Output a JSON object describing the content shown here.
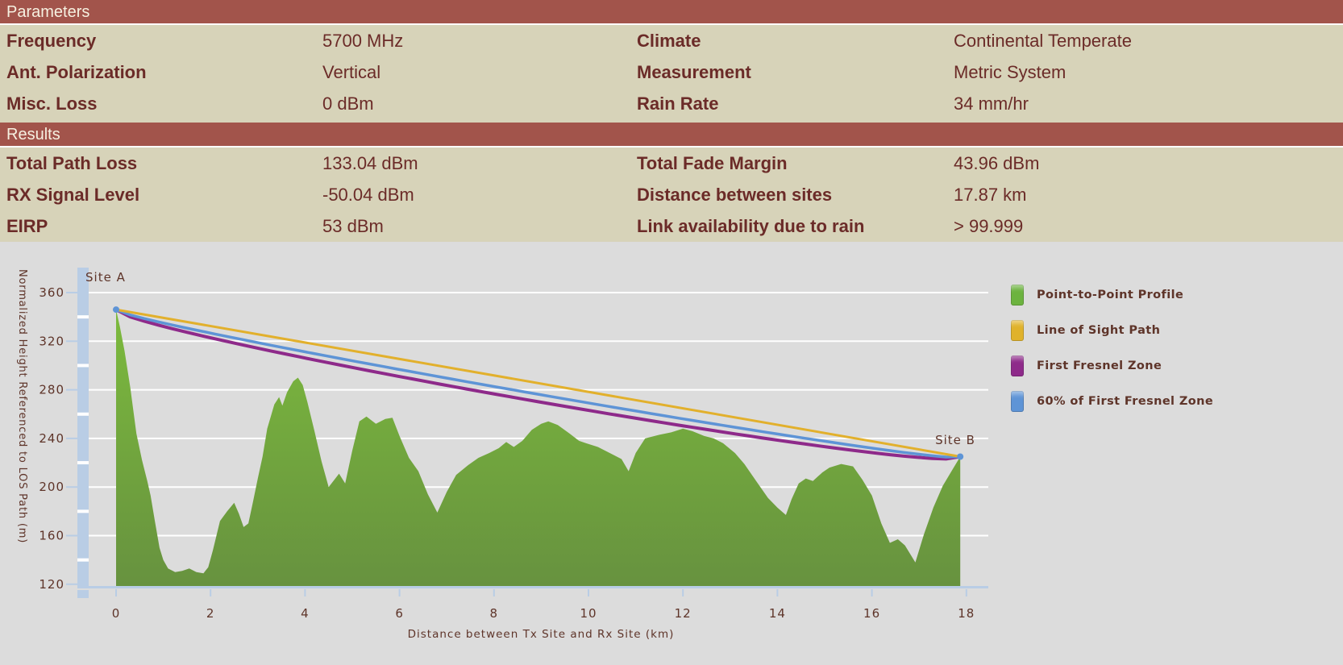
{
  "colors": {
    "header_bar": "#a2544b",
    "panel_background": "#d7d3b9",
    "text_maroon": "#6b2b28",
    "header_text": "#f6f1e1",
    "chart_background": "#dcdcdc",
    "chart_text": "#5e3429",
    "axis_band_blue": "#b9cde5",
    "gridline": "#ffffff",
    "terrain_green_top": "#7cba3d",
    "terrain_green_bottom": "#67923f",
    "los_yellow": "#e2b02c",
    "fresnel_purple": "#8e2a8a",
    "fresnel60_blue": "#5e94d6"
  },
  "parameters": {
    "header": "Parameters",
    "rows": [
      {
        "label": "Frequency",
        "value": "5700 MHz",
        "label2": "Climate",
        "value2": "Continental Temperate"
      },
      {
        "label": "Ant. Polarization",
        "value": "Vertical",
        "label2": "Measurement",
        "value2": "Metric System"
      },
      {
        "label": "Misc. Loss",
        "value": "0 dBm",
        "label2": "Rain Rate",
        "value2": "34 mm/hr"
      }
    ]
  },
  "results": {
    "header": "Results",
    "rows": [
      {
        "label": "Total Path Loss",
        "value": "133.04 dBm",
        "label2": "Total Fade Margin",
        "value2": "43.96 dBm"
      },
      {
        "label": "RX Signal Level",
        "value": "-50.04 dBm",
        "label2": "Distance between sites",
        "value2": "17.87 km"
      },
      {
        "label": "EIRP",
        "value": "53 dBm",
        "label2": "Link availability due to rain",
        "value2": "> 99.999"
      }
    ]
  },
  "chart_data": {
    "type": "area",
    "xlabel": "Distance between Tx Site and Rx Site (km)",
    "ylabel": "Normalized Height Referenced to LOS Path (m)",
    "xlim": [
      0,
      18.4
    ],
    "ylim": [
      120,
      380
    ],
    "x_ticks": [
      0,
      2,
      4,
      6,
      8,
      10,
      12,
      14,
      16,
      18
    ],
    "y_ticks": [
      120,
      160,
      200,
      240,
      280,
      320,
      360
    ],
    "grid": "on",
    "legend_position": "right",
    "site_a_label": "Site A",
    "site_b_label": "Site B",
    "distance_km": 17.87,
    "los": {
      "start_m": 346,
      "end_m": 225
    },
    "fresnel_max_radius_m": 15.3,
    "legend": [
      {
        "label": "Point-to-Point Profile",
        "color": "#6cb33f"
      },
      {
        "label": "Line of Sight Path",
        "color": "#e0b22b"
      },
      {
        "label": "First Fresnel Zone",
        "color": "#8e2a8a"
      },
      {
        "label": "60% of First Fresnel Zone",
        "color": "#5e94d6"
      }
    ],
    "series": [
      {
        "name": "Point-to-Point Profile",
        "kind": "terrain-area"
      },
      {
        "name": "Line of Sight Path",
        "kind": "straight-line"
      },
      {
        "name": "First Fresnel Zone",
        "kind": "los-minus-fresnel-radius"
      },
      {
        "name": "60% of First Fresnel Zone",
        "kind": "los-minus-60pct-fresnel-radius"
      }
    ],
    "profile": [
      [
        0,
        346
      ],
      [
        0.08,
        332
      ],
      [
        0.18,
        312
      ],
      [
        0.3,
        282
      ],
      [
        0.43,
        244
      ],
      [
        0.55,
        222
      ],
      [
        0.66,
        205
      ],
      [
        0.73,
        193
      ],
      [
        0.82,
        172
      ],
      [
        0.92,
        150
      ],
      [
        1.0,
        140
      ],
      [
        1.1,
        133
      ],
      [
        1.25,
        130
      ],
      [
        1.4,
        131
      ],
      [
        1.55,
        133
      ],
      [
        1.7,
        130
      ],
      [
        1.85,
        129
      ],
      [
        1.95,
        134
      ],
      [
        2.05,
        148
      ],
      [
        2.2,
        172
      ],
      [
        2.35,
        180
      ],
      [
        2.5,
        187
      ],
      [
        2.6,
        178
      ],
      [
        2.7,
        167
      ],
      [
        2.8,
        170
      ],
      [
        2.9,
        188
      ],
      [
        3.0,
        207
      ],
      [
        3.1,
        225
      ],
      [
        3.2,
        248
      ],
      [
        3.35,
        268
      ],
      [
        3.45,
        274
      ],
      [
        3.52,
        267
      ],
      [
        3.62,
        278
      ],
      [
        3.75,
        287
      ],
      [
        3.85,
        290
      ],
      [
        3.95,
        284
      ],
      [
        4.05,
        270
      ],
      [
        4.2,
        246
      ],
      [
        4.35,
        221
      ],
      [
        4.5,
        200
      ],
      [
        4.62,
        206
      ],
      [
        4.72,
        211
      ],
      [
        4.85,
        203
      ],
      [
        5.0,
        230
      ],
      [
        5.15,
        254
      ],
      [
        5.3,
        258
      ],
      [
        5.5,
        252
      ],
      [
        5.7,
        256
      ],
      [
        5.85,
        257
      ],
      [
        6.0,
        242
      ],
      [
        6.2,
        224
      ],
      [
        6.4,
        213
      ],
      [
        6.6,
        194
      ],
      [
        6.8,
        179
      ],
      [
        7.0,
        196
      ],
      [
        7.2,
        210
      ],
      [
        7.45,
        218
      ],
      [
        7.67,
        224
      ],
      [
        7.9,
        228
      ],
      [
        8.1,
        232
      ],
      [
        8.26,
        237
      ],
      [
        8.42,
        233
      ],
      [
        8.6,
        238
      ],
      [
        8.8,
        247
      ],
      [
        9.0,
        252
      ],
      [
        9.15,
        254
      ],
      [
        9.35,
        251
      ],
      [
        9.6,
        244
      ],
      [
        9.8,
        238
      ],
      [
        9.95,
        236
      ],
      [
        10.2,
        233
      ],
      [
        10.45,
        228
      ],
      [
        10.7,
        223
      ],
      [
        10.85,
        213
      ],
      [
        11.0,
        228
      ],
      [
        11.2,
        240
      ],
      [
        11.5,
        243
      ],
      [
        11.75,
        245
      ],
      [
        12.0,
        248
      ],
      [
        12.2,
        246
      ],
      [
        12.45,
        242
      ],
      [
        12.65,
        240
      ],
      [
        12.85,
        236
      ],
      [
        13.1,
        228
      ],
      [
        13.3,
        219
      ],
      [
        13.55,
        205
      ],
      [
        13.8,
        191
      ],
      [
        14.0,
        183
      ],
      [
        14.18,
        177
      ],
      [
        14.3,
        190
      ],
      [
        14.45,
        203
      ],
      [
        14.6,
        207
      ],
      [
        14.75,
        205
      ],
      [
        14.95,
        212
      ],
      [
        15.1,
        216
      ],
      [
        15.35,
        219
      ],
      [
        15.6,
        217
      ],
      [
        15.8,
        206
      ],
      [
        16.0,
        193
      ],
      [
        16.2,
        170
      ],
      [
        16.38,
        154
      ],
      [
        16.55,
        157
      ],
      [
        16.7,
        152
      ],
      [
        16.92,
        138
      ],
      [
        17.1,
        161
      ],
      [
        17.3,
        183
      ],
      [
        17.5,
        201
      ],
      [
        17.7,
        214
      ],
      [
        17.87,
        225
      ]
    ]
  }
}
